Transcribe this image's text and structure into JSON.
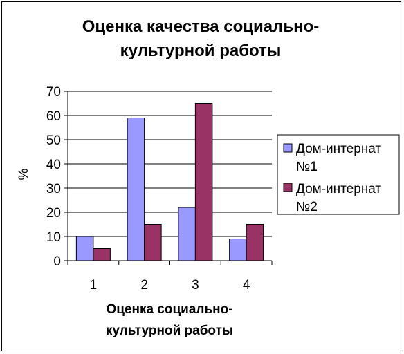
{
  "chart_data": {
    "type": "bar",
    "title": [
      "Оценка качества социально-",
      "культурной работы"
    ],
    "xlabel": [
      "Оценка социально-",
      "культурной работы"
    ],
    "ylabel": "%",
    "categories": [
      "1",
      "2",
      "3",
      "4"
    ],
    "ylim": [
      0,
      70
    ],
    "yticks": [
      0,
      10,
      20,
      30,
      40,
      50,
      60,
      70
    ],
    "grid": true,
    "legend_position": "right",
    "series": [
      {
        "name": [
          "Дом-интернат",
          "№1"
        ],
        "color": "#9999ff",
        "values": [
          10,
          59,
          22,
          9
        ]
      },
      {
        "name": [
          "Дом-интернат",
          "№2"
        ],
        "color": "#993366",
        "values": [
          5,
          15,
          65,
          15
        ]
      }
    ]
  }
}
